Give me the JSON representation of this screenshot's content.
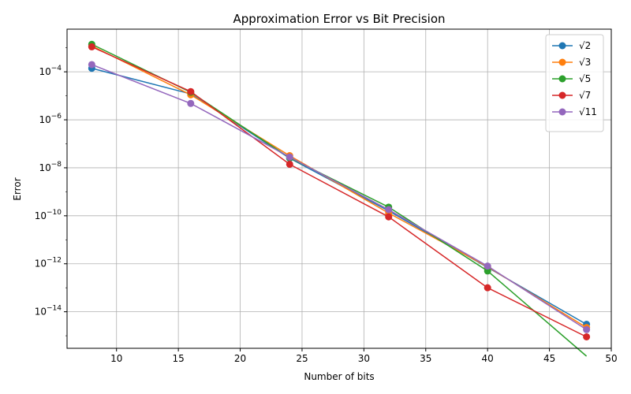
{
  "chart_data": {
    "type": "line",
    "title": "Approximation Error vs Bit Precision",
    "xlabel": "Number of bits",
    "ylabel": "Error",
    "x": [
      8,
      16,
      24,
      32,
      40,
      48
    ],
    "xlim": [
      6,
      50
    ],
    "x_ticks": [
      10,
      15,
      20,
      25,
      30,
      35,
      40,
      45,
      50
    ],
    "yscale": "log",
    "ylim": [
      3e-16,
      0.006
    ],
    "y_ticks": [
      {
        "value": 1e-14,
        "base": "10",
        "exp": "−14"
      },
      {
        "value": 1e-12,
        "base": "10",
        "exp": "−12"
      },
      {
        "value": 1e-10,
        "base": "10",
        "exp": "−10"
      },
      {
        "value": 1e-08,
        "base": "10",
        "exp": "−8"
      },
      {
        "value": 1e-06,
        "base": "10",
        "exp": "−6"
      },
      {
        "value": 0.0001,
        "base": "10",
        "exp": "−4"
      }
    ],
    "grid": true,
    "legend_position": "top-right",
    "series": [
      {
        "name": "√2",
        "color": "#1f77b4",
        "values": [
          0.00014,
          1.2e-05,
          2.5e-08,
          1.6e-10,
          7e-13,
          3e-15
        ]
      },
      {
        "name": "√3",
        "color": "#ff7f0e",
        "values": [
          0.0012,
          1.1e-05,
          3.2e-08,
          1.3e-10,
          7.5e-13,
          2.2e-15
        ]
      },
      {
        "name": "√5",
        "color": "#2ca02c",
        "values": [
          0.0014,
          1.4e-05,
          2.6e-08,
          2.3e-10,
          5e-13,
          0
        ]
      },
      {
        "name": "√7",
        "color": "#d62728",
        "values": [
          0.0011,
          1.5e-05,
          1.4e-08,
          9e-11,
          1e-13,
          9e-16
        ]
      },
      {
        "name": "√11",
        "color": "#9467bd",
        "values": [
          0.0002,
          4.8e-06,
          2.8e-08,
          1.8e-10,
          8e-13,
          1.8e-15
        ]
      }
    ]
  }
}
